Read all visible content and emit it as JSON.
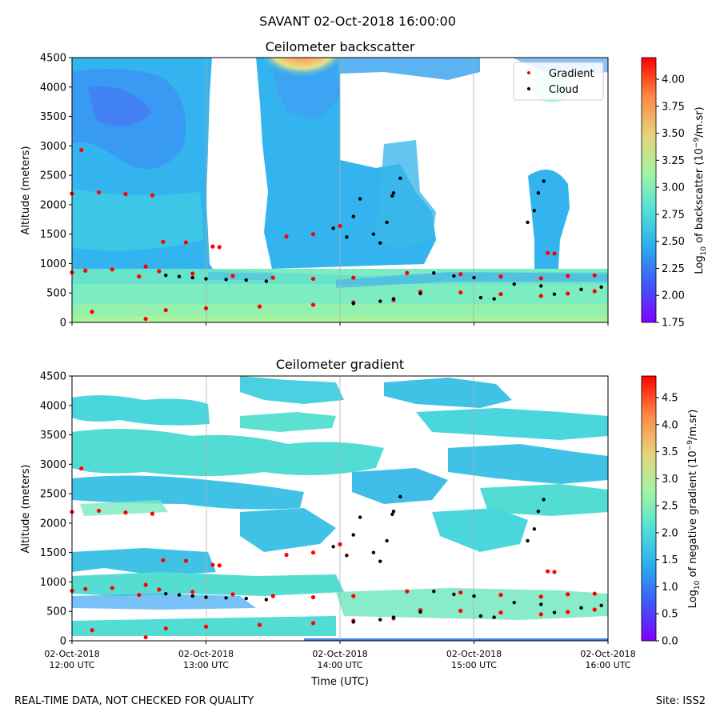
{
  "suptitle": "SAVANT 02-Oct-2018 16:00:00",
  "footer": {
    "left": "REAL-TIME DATA, NOT CHECKED FOR QUALITY",
    "right": "Site: ISS2"
  },
  "colors": {
    "gradient_marker": "#ff0000",
    "cloud_marker": "#000000",
    "colormap": [
      "#7f00ff",
      "#3f57fa",
      "#2ab0ed",
      "#7ff0c0",
      "#d4e079",
      "#ffae54",
      "#ff5b30",
      "#ff0000"
    ]
  },
  "chart_data": [
    {
      "type": "heatmap",
      "title": "Ceilometer backscatter",
      "xlabel": "",
      "ylabel": "Altitude (meters)",
      "xlim": [
        12.0,
        16.0
      ],
      "ylim": [
        0,
        4500
      ],
      "x_ticks": [
        12,
        13,
        14,
        15,
        16
      ],
      "x_tick_labels": [],
      "y_ticks": [
        0,
        500,
        1000,
        1500,
        2000,
        2500,
        3000,
        3500,
        4000,
        4500
      ],
      "grid": "vertical",
      "legend": {
        "placement": "top-right",
        "entries": [
          "Gradient",
          "Cloud"
        ]
      },
      "colorbar": {
        "label_prefix": "Log",
        "label_sub": "10",
        "label_mid": " of backscatter (10",
        "label_sup": "−9",
        "label_suffix": "/m.sr)",
        "range": [
          1.75,
          4.2
        ],
        "ticks": [
          "1.75",
          "2.00",
          "2.25",
          "2.50",
          "2.75",
          "3.00",
          "3.25",
          "3.50",
          "3.75",
          "4.00"
        ]
      },
      "gradient_series": [
        [
          12.0,
          850
        ],
        [
          12.1,
          880
        ],
        [
          12.3,
          900
        ],
        [
          12.5,
          780
        ],
        [
          12.55,
          950
        ],
        [
          12.65,
          870
        ],
        [
          12.9,
          830
        ],
        [
          13.2,
          790
        ],
        [
          13.5,
          760
        ],
        [
          13.8,
          740
        ],
        [
          14.1,
          760
        ],
        [
          14.5,
          840
        ],
        [
          14.9,
          820
        ],
        [
          15.2,
          780
        ],
        [
          15.5,
          750
        ],
        [
          15.7,
          790
        ],
        [
          15.9,
          800
        ],
        [
          14.6,
          520
        ],
        [
          14.9,
          510
        ],
        [
          15.2,
          480
        ],
        [
          15.5,
          450
        ],
        [
          15.7,
          490
        ],
        [
          15.9,
          530
        ],
        [
          12.15,
          180
        ],
        [
          12.55,
          60
        ],
        [
          12.7,
          210
        ],
        [
          13.0,
          240
        ],
        [
          13.4,
          270
        ],
        [
          13.8,
          300
        ],
        [
          14.1,
          340
        ],
        [
          14.4,
          380
        ],
        [
          12.0,
          2190
        ],
        [
          12.2,
          2210
        ],
        [
          12.4,
          2180
        ],
        [
          12.6,
          2160
        ],
        [
          12.07,
          2930
        ],
        [
          12.68,
          1370
        ],
        [
          12.85,
          1360
        ],
        [
          13.6,
          1460
        ],
        [
          13.8,
          1500
        ],
        [
          14.0,
          1640
        ],
        [
          15.55,
          1180
        ],
        [
          15.6,
          1170
        ],
        [
          13.05,
          1290
        ],
        [
          13.1,
          1280
        ]
      ],
      "cloud_series": [
        [
          12.7,
          800
        ],
        [
          12.8,
          780
        ],
        [
          12.9,
          760
        ],
        [
          13.0,
          740
        ],
        [
          13.15,
          730
        ],
        [
          13.3,
          720
        ],
        [
          13.45,
          700
        ],
        [
          14.1,
          320
        ],
        [
          14.3,
          360
        ],
        [
          14.4,
          400
        ],
        [
          14.6,
          490
        ],
        [
          14.7,
          840
        ],
        [
          14.85,
          790
        ],
        [
          15.0,
          760
        ],
        [
          15.05,
          420
        ],
        [
          15.15,
          400
        ],
        [
          15.3,
          650
        ],
        [
          15.5,
          620
        ],
        [
          15.6,
          480
        ],
        [
          15.8,
          560
        ],
        [
          15.95,
          600
        ],
        [
          13.95,
          1600
        ],
        [
          14.05,
          1450
        ],
        [
          14.1,
          1800
        ],
        [
          14.15,
          2100
        ],
        [
          14.25,
          1500
        ],
        [
          14.35,
          1700
        ],
        [
          14.4,
          2200
        ],
        [
          14.45,
          2450
        ],
        [
          14.39,
          2150
        ],
        [
          14.3,
          1350
        ],
        [
          15.48,
          2200
        ],
        [
          15.52,
          2400
        ],
        [
          15.45,
          1900
        ],
        [
          15.4,
          1700
        ]
      ]
    },
    {
      "type": "heatmap",
      "title": "Ceilometer gradient",
      "xlabel": "Time (UTC)",
      "ylabel": "Altitude (meters)",
      "xlim": [
        12.0,
        16.0
      ],
      "ylim": [
        0,
        4500
      ],
      "x_ticks": [
        12,
        13,
        14,
        15,
        16
      ],
      "x_tick_labels": [
        [
          "02-Oct-2018",
          "12:00 UTC"
        ],
        [
          "02-Oct-2018",
          "13:00 UTC"
        ],
        [
          "02-Oct-2018",
          "14:00 UTC"
        ],
        [
          "02-Oct-2018",
          "15:00 UTC"
        ],
        [
          "02-Oct-2018",
          "16:00 UTC"
        ]
      ],
      "y_ticks": [
        0,
        500,
        1000,
        1500,
        2000,
        2500,
        3000,
        3500,
        4000,
        4500
      ],
      "grid": "vertical",
      "colorbar": {
        "label_prefix": "Log",
        "label_sub": "10",
        "label_mid": " of negative gradient (10",
        "label_sup": "−9",
        "label_suffix": "/m.sr)",
        "range": [
          0.0,
          4.9
        ],
        "ticks": [
          "0.0",
          "0.5",
          "1.0",
          "1.5",
          "2.0",
          "2.5",
          "3.0",
          "3.5",
          "4.0",
          "4.5"
        ]
      },
      "gradient_series": [
        [
          12.0,
          850
        ],
        [
          12.1,
          880
        ],
        [
          12.3,
          900
        ],
        [
          12.5,
          780
        ],
        [
          12.55,
          950
        ],
        [
          12.65,
          870
        ],
        [
          12.9,
          830
        ],
        [
          13.2,
          790
        ],
        [
          13.5,
          760
        ],
        [
          13.8,
          740
        ],
        [
          14.1,
          760
        ],
        [
          14.5,
          840
        ],
        [
          14.9,
          820
        ],
        [
          15.2,
          780
        ],
        [
          15.5,
          750
        ],
        [
          15.7,
          790
        ],
        [
          15.9,
          800
        ],
        [
          14.6,
          520
        ],
        [
          14.9,
          510
        ],
        [
          15.2,
          480
        ],
        [
          15.5,
          450
        ],
        [
          15.7,
          490
        ],
        [
          15.9,
          530
        ],
        [
          12.15,
          180
        ],
        [
          12.55,
          60
        ],
        [
          12.7,
          210
        ],
        [
          13.0,
          240
        ],
        [
          13.4,
          270
        ],
        [
          13.8,
          300
        ],
        [
          14.1,
          340
        ],
        [
          14.4,
          380
        ],
        [
          12.0,
          2190
        ],
        [
          12.2,
          2210
        ],
        [
          12.4,
          2180
        ],
        [
          12.6,
          2160
        ],
        [
          12.07,
          2930
        ],
        [
          12.68,
          1370
        ],
        [
          12.85,
          1360
        ],
        [
          13.6,
          1460
        ],
        [
          13.8,
          1500
        ],
        [
          14.0,
          1640
        ],
        [
          15.55,
          1180
        ],
        [
          15.6,
          1170
        ],
        [
          13.05,
          1290
        ],
        [
          13.1,
          1280
        ]
      ],
      "cloud_series": [
        [
          12.7,
          800
        ],
        [
          12.8,
          780
        ],
        [
          12.9,
          760
        ],
        [
          13.0,
          740
        ],
        [
          13.15,
          730
        ],
        [
          13.3,
          720
        ],
        [
          13.45,
          700
        ],
        [
          14.1,
          320
        ],
        [
          14.3,
          360
        ],
        [
          14.4,
          400
        ],
        [
          14.6,
          490
        ],
        [
          14.7,
          840
        ],
        [
          14.85,
          790
        ],
        [
          15.0,
          760
        ],
        [
          15.05,
          420
        ],
        [
          15.15,
          400
        ],
        [
          15.3,
          650
        ],
        [
          15.5,
          620
        ],
        [
          15.6,
          480
        ],
        [
          15.8,
          560
        ],
        [
          15.95,
          600
        ],
        [
          13.95,
          1600
        ],
        [
          14.05,
          1450
        ],
        [
          14.1,
          1800
        ],
        [
          14.15,
          2100
        ],
        [
          14.25,
          1500
        ],
        [
          14.35,
          1700
        ],
        [
          14.4,
          2200
        ],
        [
          14.45,
          2450
        ],
        [
          14.39,
          2150
        ],
        [
          14.3,
          1350
        ],
        [
          15.48,
          2200
        ],
        [
          15.52,
          2400
        ],
        [
          15.45,
          1900
        ],
        [
          15.4,
          1700
        ]
      ]
    }
  ]
}
